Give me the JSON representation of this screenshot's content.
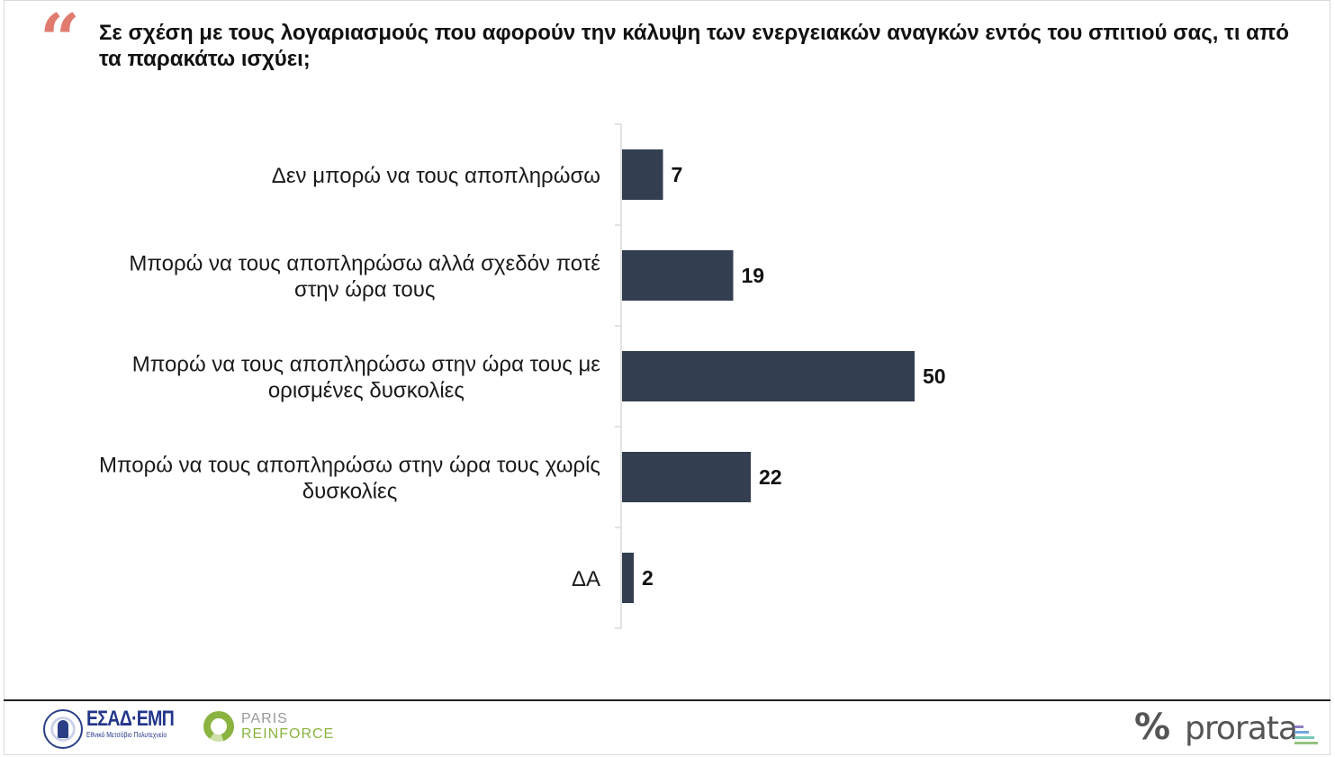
{
  "question": "Σε σχέση με τους λογαριασμούς που αφορούν την κάλυψη των ενεργειακών αναγκών εντός του σπιτιού σας, τι από τα παρακάτω ισχύει;",
  "quote_glyph": "“",
  "colors": {
    "bar": "#333f50",
    "quote": "#e07b6e",
    "axis": "#d9d9d9",
    "text": "#111111"
  },
  "chart_data": {
    "type": "bar",
    "orientation": "horizontal",
    "categories": [
      "Δεν μπορώ να τους αποπληρώσω",
      "Μπορώ να τους αποπληρώσω αλλά σχεδόν ποτέ στην ώρα τους",
      "Μπορώ να τους αποπληρώσω στην ώρα τους με ορισμένες δυσκολίες",
      "Μπορώ να τους αποπληρώσω στην ώρα τους χωρίς δυσκολίες",
      "ΔΑ"
    ],
    "category_lines": [
      [
        "Δεν μπορώ να τους αποπληρώσω"
      ],
      [
        "Μπορώ να τους αποπληρώσω αλλά σχεδόν ποτέ",
        "στην ώρα τους"
      ],
      [
        "Μπορώ να τους αποπληρώσω στην ώρα τους με",
        "ορισμένες δυσκολίες"
      ],
      [
        "Μπορώ να τους αποπληρώσω στην ώρα τους χωρίς",
        "δυσκολίες"
      ],
      [
        "ΔΑ"
      ]
    ],
    "values": [
      7,
      19,
      50,
      22,
      2
    ],
    "value_labels": [
      "7",
      "19",
      "50",
      "22",
      "2"
    ],
    "xlim": [
      0,
      100
    ],
    "grid": false,
    "legend": "none"
  },
  "footer": {
    "logo1_title": "ΕΣΑΔ·ΕΜΠ",
    "logo1_sub": "Εθνικό Μετσόβιο Πολυτεχνείο",
    "logo2_line1": "PARIS",
    "logo2_line2": "REINFORCE",
    "logo3_symbol": "%",
    "logo3_text": "prorata"
  }
}
